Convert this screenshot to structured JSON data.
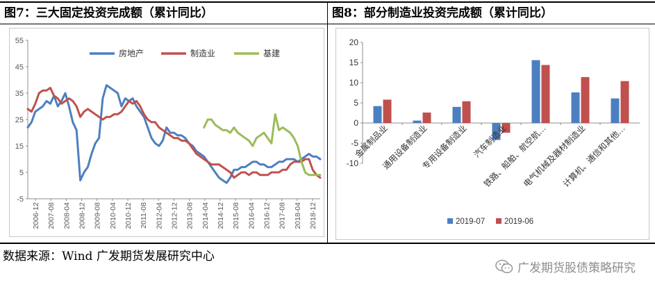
{
  "left_panel": {
    "title": "图7：三大固定投资完成额（累计同比）"
  },
  "right_panel": {
    "title": "图8：部分制造业投资完成额（累计同比）"
  },
  "footer": {
    "source": "数据来源：Wind  广发期货发展研究中心",
    "brand": "广发期货股债策略研究"
  },
  "colors": {
    "blue": "#4c7fc0",
    "red": "#c0504d",
    "green": "#9bbb59",
    "axis": "#8c8c8c",
    "text": "#595959"
  },
  "chart_data": [
    {
      "type": "line",
      "title": "",
      "ylim": [
        -5,
        55
      ],
      "yticks": [
        -5,
        5,
        15,
        25,
        35,
        45,
        55
      ],
      "xlim": [
        0,
        156
      ],
      "x_tick_labels": [
        "2006-12",
        "2007-08",
        "2008-04",
        "2008-12",
        "2009-08",
        "2010-04",
        "2010-12",
        "2011-08",
        "2012-04",
        "2012-12",
        "2013-08",
        "2014-04",
        "2014-12",
        "2015-08",
        "2016-04",
        "2016-12",
        "2017-08",
        "2018-04",
        "2018-12"
      ],
      "legend_position": "top",
      "series": [
        {
          "name": "房地产",
          "x": [
            0,
            2,
            4,
            6,
            8,
            10,
            12,
            14,
            16,
            18,
            20,
            22,
            24,
            26,
            28,
            30,
            32,
            34,
            36,
            38,
            40,
            42,
            44,
            46,
            48,
            50,
            52,
            54,
            56,
            58,
            60,
            62,
            64,
            66,
            68,
            70,
            72,
            74,
            76,
            78,
            80,
            82,
            84,
            86,
            88,
            90,
            92,
            94,
            96,
            98,
            100,
            102,
            104,
            106,
            108,
            110,
            112,
            114,
            116,
            118,
            120,
            122,
            124,
            126,
            128,
            130,
            132,
            134,
            136,
            138,
            140,
            142,
            144,
            146,
            148,
            150,
            152,
            154,
            156
          ],
          "values": [
            22,
            24,
            28,
            29,
            30,
            32,
            31,
            34,
            30,
            32,
            35,
            30,
            24,
            21,
            2,
            5,
            7,
            12,
            16,
            18,
            33,
            38,
            37,
            36,
            35,
            30,
            33,
            32,
            33,
            30,
            28,
            26,
            22,
            18,
            16,
            15,
            17,
            22,
            20,
            20,
            19,
            19,
            18,
            16,
            15,
            13,
            12,
            11,
            9,
            7,
            5,
            3,
            2,
            1,
            3,
            6,
            6,
            7,
            7,
            8,
            9,
            9,
            8,
            8,
            7,
            7,
            8,
            9,
            9,
            10,
            10,
            10,
            9,
            10,
            11,
            12,
            11,
            11,
            10
          ]
        },
        {
          "name": "制造业",
          "x": [
            0,
            2,
            4,
            6,
            8,
            10,
            12,
            14,
            16,
            18,
            20,
            22,
            24,
            26,
            28,
            30,
            32,
            34,
            36,
            38,
            40,
            42,
            44,
            46,
            48,
            50,
            52,
            54,
            56,
            58,
            60,
            62,
            64,
            66,
            68,
            70,
            72,
            74,
            76,
            78,
            80,
            82,
            84,
            86,
            88,
            90,
            92,
            94,
            96,
            98,
            100,
            102,
            104,
            106,
            108,
            110,
            112,
            114,
            116,
            118,
            120,
            122,
            124,
            126,
            128,
            130,
            132,
            134,
            136,
            138,
            140,
            142,
            144,
            146,
            148,
            150,
            152,
            154,
            156
          ],
          "values": [
            29,
            28,
            31,
            35,
            36,
            36,
            37,
            34,
            33,
            31,
            32,
            33,
            32,
            30,
            26,
            28,
            29,
            28,
            27,
            26,
            25,
            26,
            26,
            27,
            27,
            28,
            30,
            32,
            31,
            32,
            30,
            27,
            25,
            24,
            24,
            22,
            21,
            20,
            19,
            18,
            18,
            17,
            17,
            16,
            14,
            12,
            11,
            10,
            9,
            8,
            8,
            8,
            7,
            6,
            5,
            3,
            4,
            5,
            5,
            4,
            5,
            5,
            4,
            4,
            4,
            5,
            5,
            5,
            6,
            6,
            8,
            9,
            9,
            9,
            10,
            10,
            6,
            4,
            3
          ]
        },
        {
          "name": "基建",
          "x": [
            94,
            96,
            98,
            100,
            102,
            104,
            106,
            108,
            110,
            112,
            114,
            116,
            118,
            120,
            122,
            124,
            126,
            128,
            130,
            132,
            134,
            136,
            138,
            140,
            142,
            144,
            146,
            148,
            150,
            152,
            154,
            156
          ],
          "values": [
            22,
            25,
            25,
            23,
            22,
            21,
            21,
            20,
            22,
            20,
            19,
            18,
            17,
            15,
            18,
            19,
            20,
            18,
            16,
            27,
            21,
            22,
            21,
            20,
            18,
            15,
            9,
            5,
            4,
            4,
            4,
            4
          ]
        }
      ]
    },
    {
      "type": "bar",
      "title": "",
      "ylim": [
        -10,
        20
      ],
      "yticks": [
        -10,
        -5,
        0,
        5,
        10,
        15,
        20
      ],
      "categories": [
        "金属制品业",
        "通用设备制造业",
        "专用设备制造业",
        "汽车制造业",
        "铁路、船舶、航空航…",
        "电气机械及器材制造业",
        "计算机、通信和其他…"
      ],
      "legend_position": "bottom",
      "series": [
        {
          "name": "2019-07",
          "values": [
            4.2,
            0.6,
            4.0,
            -4.2,
            15.6,
            7.6,
            6.1
          ]
        },
        {
          "name": "2019-06",
          "values": [
            5.8,
            2.6,
            5.4,
            -2.4,
            14.4,
            11.4,
            10.4
          ]
        }
      ]
    }
  ]
}
